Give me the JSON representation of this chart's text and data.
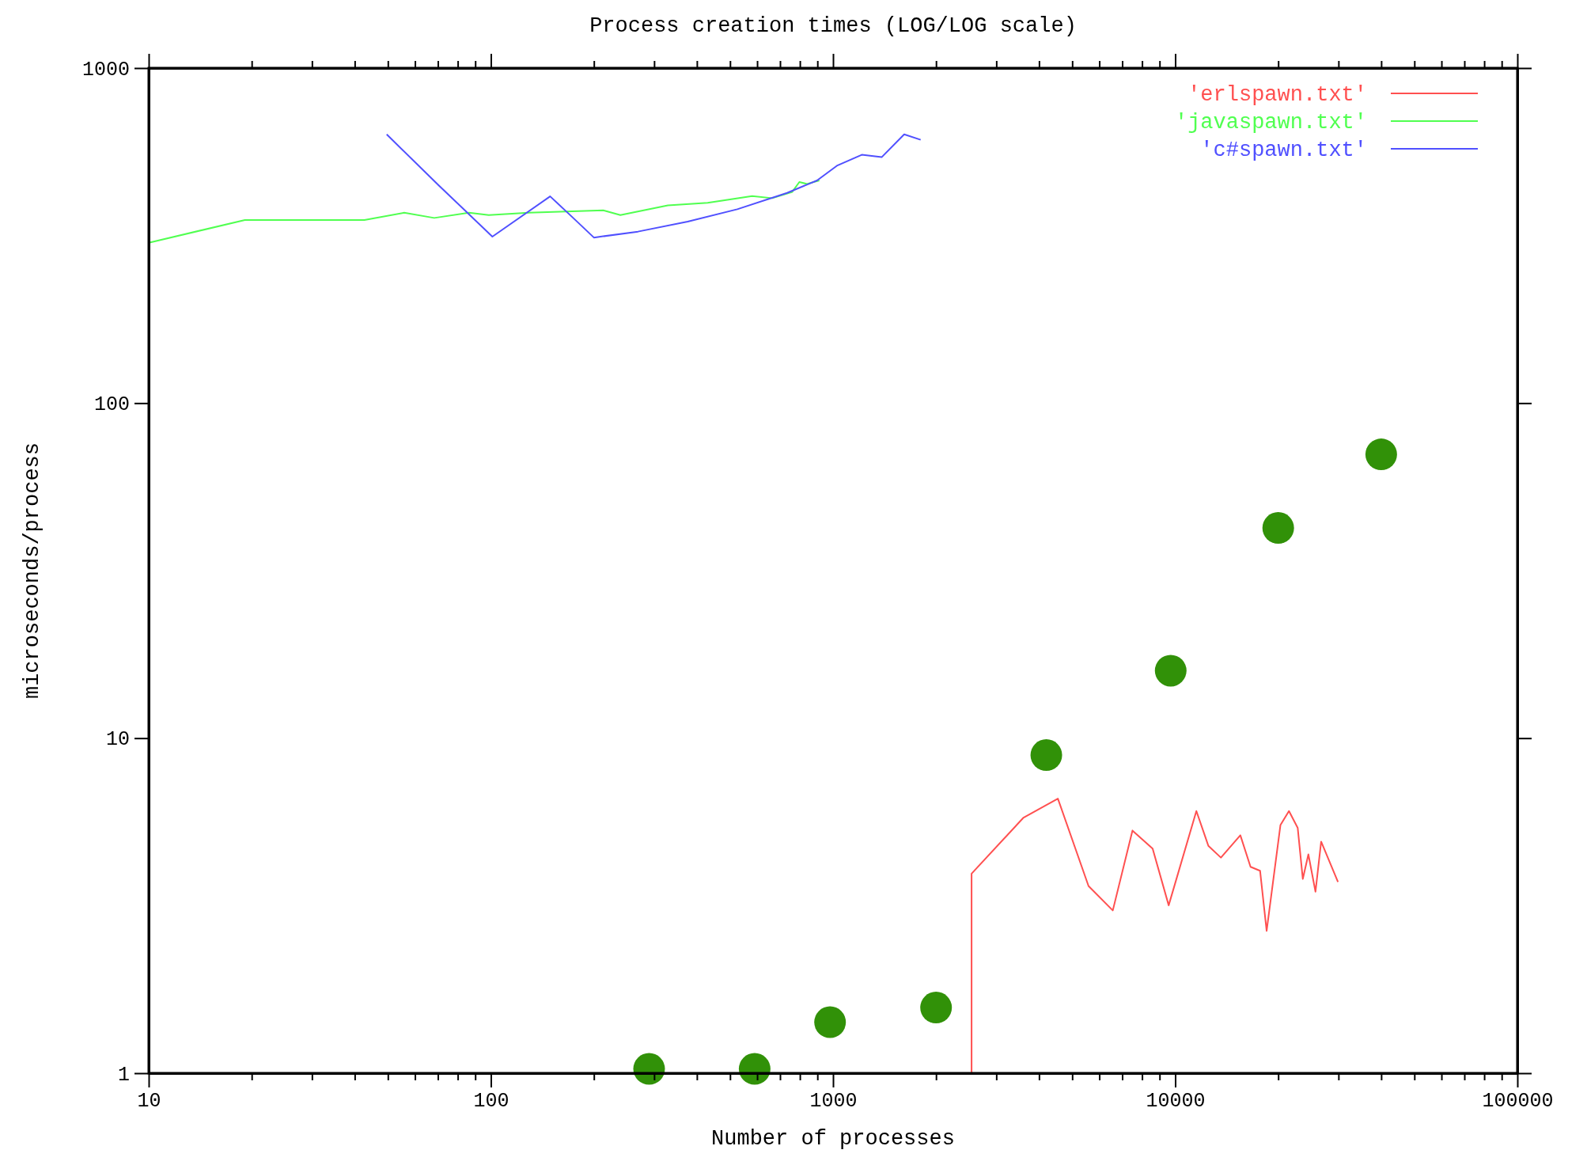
{
  "chart_data": {
    "type": "line",
    "title": "Process creation times (LOG/LOG scale)",
    "xlabel": "Number of processes",
    "ylabel": "microseconds/process",
    "log": "xy",
    "grid": false,
    "legend": "top right",
    "marker": "none",
    "line_style": "solid",
    "xlim": [
      10,
      100000
    ],
    "ylim": [
      1,
      1000
    ],
    "xticks": [
      10,
      {
        "value": 20,
        "label": null
      },
      {
        "value": 30,
        "label": null
      },
      {
        "value": 40,
        "label": null
      },
      {
        "value": 50,
        "label": null
      },
      {
        "value": 60,
        "label": null
      },
      {
        "value": 70,
        "label": null
      },
      {
        "value": 80,
        "label": null
      },
      {
        "value": 90,
        "label": null
      },
      100,
      {
        "value": 200,
        "label": null
      },
      {
        "value": 300,
        "label": null
      },
      {
        "value": 400,
        "label": null
      },
      {
        "value": 500,
        "label": null
      },
      {
        "value": 600,
        "label": null
      },
      {
        "value": 700,
        "label": null
      },
      {
        "value": 800,
        "label": null
      },
      {
        "value": 900,
        "label": null
      },
      1000,
      {
        "value": 2000,
        "label": null
      },
      {
        "value": 3000,
        "label": null
      },
      {
        "value": 4000,
        "label": null
      },
      {
        "value": 5000,
        "label": null
      },
      {
        "value": 6000,
        "label": null
      },
      {
        "value": 7000,
        "label": null
      },
      {
        "value": 8000,
        "label": null
      },
      {
        "value": 9000,
        "label": null
      },
      10000,
      {
        "value": 20000,
        "label": null
      },
      {
        "value": 30000,
        "label": null
      },
      {
        "value": 40000,
        "label": null
      },
      {
        "value": 50000,
        "label": null
      },
      {
        "value": 60000,
        "label": null
      },
      {
        "value": 70000,
        "label": null
      },
      {
        "value": 80000,
        "label": null
      },
      {
        "value": 90000,
        "label": null
      },
      100000
    ],
    "yticks": [
      1,
      10,
      100,
      1000
    ],
    "series": [
      {
        "name": "'erlspawn.txt'",
        "color": "#ff5050",
        "x": [
          2540,
          2540,
          3595,
          4540,
          5580,
          6570,
          7500,
          8590,
          9570,
          11530,
          12500,
          13600,
          15500,
          16600,
          17700,
          18500,
          20300,
          21500,
          22800,
          23600,
          24500,
          25700,
          26700,
          29900
        ],
        "values": [
          1,
          3.94,
          5.78,
          6.6,
          3.62,
          3.06,
          5.3,
          4.68,
          3.17,
          6.06,
          4.77,
          4.4,
          5.13,
          4.13,
          4.02,
          2.66,
          5.5,
          6.06,
          5.4,
          3.8,
          4.5,
          3.48,
          4.91,
          3.72
        ]
      },
      {
        "name": "'javaspawn.txt'",
        "color": "#50ff50",
        "x": [
          10,
          19.1,
          42.7,
          55.8,
          68.3,
          86.3,
          98.6,
          129,
          213,
          239,
          329,
          430,
          580,
          664,
          760,
          797,
          839,
          912
        ],
        "values": [
          301,
          352,
          352,
          370,
          357,
          370,
          364,
          370,
          376,
          364,
          389,
          396,
          415,
          409,
          427,
          457,
          451,
          462
        ]
      },
      {
        "name": "'c#spawn.txt'",
        "color": "#5050ff",
        "x": [
          49.6,
          70.5,
          101,
          149,
          174,
          200,
          269,
          376,
          525,
          734,
          898,
          1026,
          1213,
          1387,
          1614,
          1803
        ],
        "values": [
          634,
          446,
          314,
          414,
          357,
          312,
          325,
          348,
          379,
          424,
          462,
          511,
          551,
          542,
          634,
          611
        ]
      },
      {
        "type": "scatter",
        "marker": "circle",
        "color": "#319108",
        "x": [
          290,
          590,
          980,
          2000,
          4200,
          9700,
          20000,
          40000
        ],
        "values": [
          1.03,
          1.03,
          1.42,
          1.57,
          8.9,
          15.9,
          42.4,
          70.3
        ]
      }
    ]
  }
}
